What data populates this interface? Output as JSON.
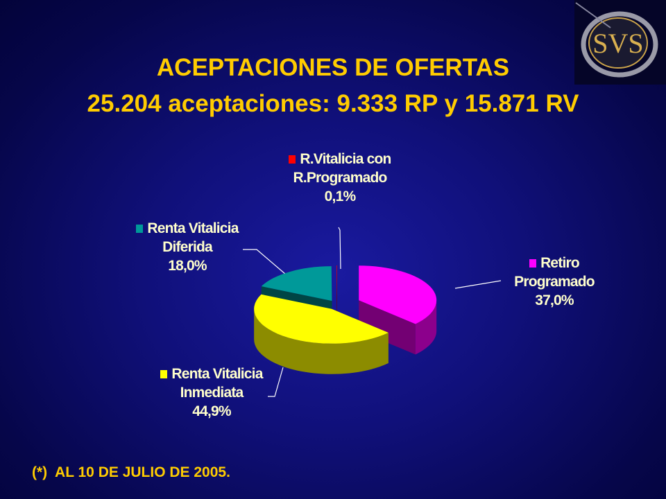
{
  "chart_data": {
    "type": "pie",
    "title": "ACEPTACIONES DE OFERTAS",
    "subtitle": "25.204 aceptaciones: 9.333 RP y 15.871 RV",
    "categories": [
      "Retiro Programado",
      "Renta Vitalicia Inmediata",
      "Renta Vitalicia Diferida",
      "R.Vitalicia con R.Programado"
    ],
    "values": [
      37.0,
      44.9,
      18.0,
      0.1
    ],
    "value_labels": [
      "37,0%",
      "44,9%",
      "18,0%",
      "0,1%"
    ],
    "colors": [
      "#ff00ff",
      "#ffff00",
      "#009999",
      "#ff0000"
    ]
  },
  "footnote": "(*)  AL 10 DE JULIO DE 2005.",
  "logo": "SVS"
}
